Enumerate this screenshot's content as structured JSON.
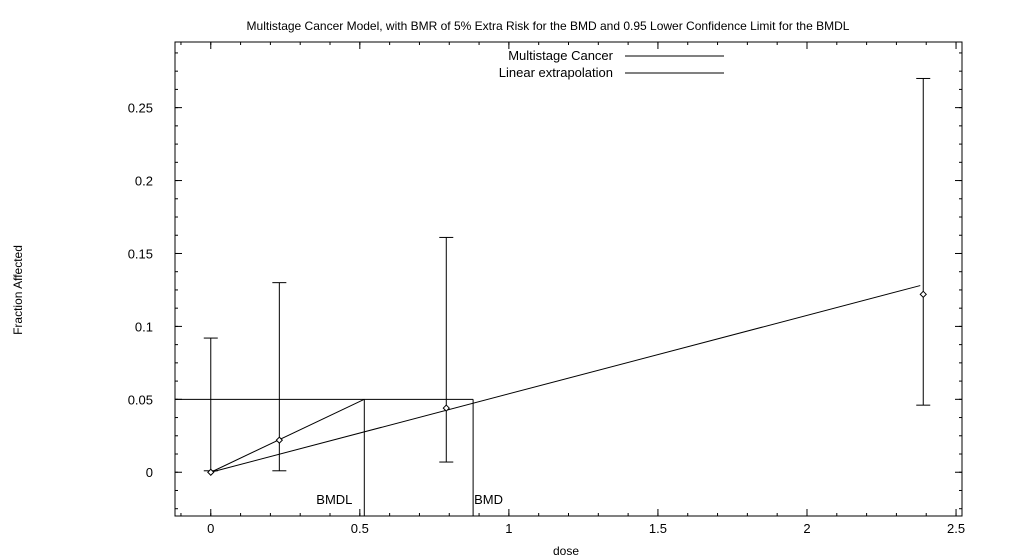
{
  "chart_data": {
    "type": "scatter",
    "title": "Multistage Cancer Model, with BMR of 5% Extra Risk for the BMD and 0.95 Lower Confidence Limit for the BMDL",
    "xlabel": "dose",
    "ylabel": "Fraction Affected",
    "xlim": [
      -0.12,
      2.52
    ],
    "ylim": [
      -0.03,
      0.295
    ],
    "x_ticks": [
      0,
      0.5,
      1,
      1.5,
      2,
      2.5
    ],
    "x_tick_labels": [
      "0",
      "0.5",
      "1",
      "1.5",
      "2",
      "2.5"
    ],
    "y_ticks": [
      0,
      0.05,
      0.1,
      0.15,
      0.2,
      0.25
    ],
    "y_tick_labels": [
      "0",
      "0.05",
      "0.1",
      "0.15",
      "0.2",
      "0.25"
    ],
    "grid": false,
    "legend_position": "top-center",
    "legend": [
      "Multistage Cancer",
      "Linear extrapolation"
    ],
    "observations": [
      {
        "dose": 0,
        "response": 0.0,
        "lower": 0.001,
        "upper": 0.092
      },
      {
        "dose": 0.23,
        "response": 0.022,
        "lower": 0.001,
        "upper": 0.13
      },
      {
        "dose": 0.79,
        "response": 0.044,
        "lower": 0.007,
        "upper": 0.161
      },
      {
        "dose": 2.39,
        "response": 0.122,
        "lower": 0.046,
        "upper": 0.27
      }
    ],
    "model_curve": {
      "x": [
        0,
        2.38
      ],
      "y": [
        0,
        0.128
      ]
    },
    "linear_extrapolation": {
      "x": [
        0,
        0.515
      ],
      "y": [
        0,
        0.05
      ]
    },
    "bmr": 0.05,
    "bmd": 0.88,
    "bmdl": 0.515,
    "bmd_label": "BMD",
    "bmdl_label": "BMDL"
  }
}
